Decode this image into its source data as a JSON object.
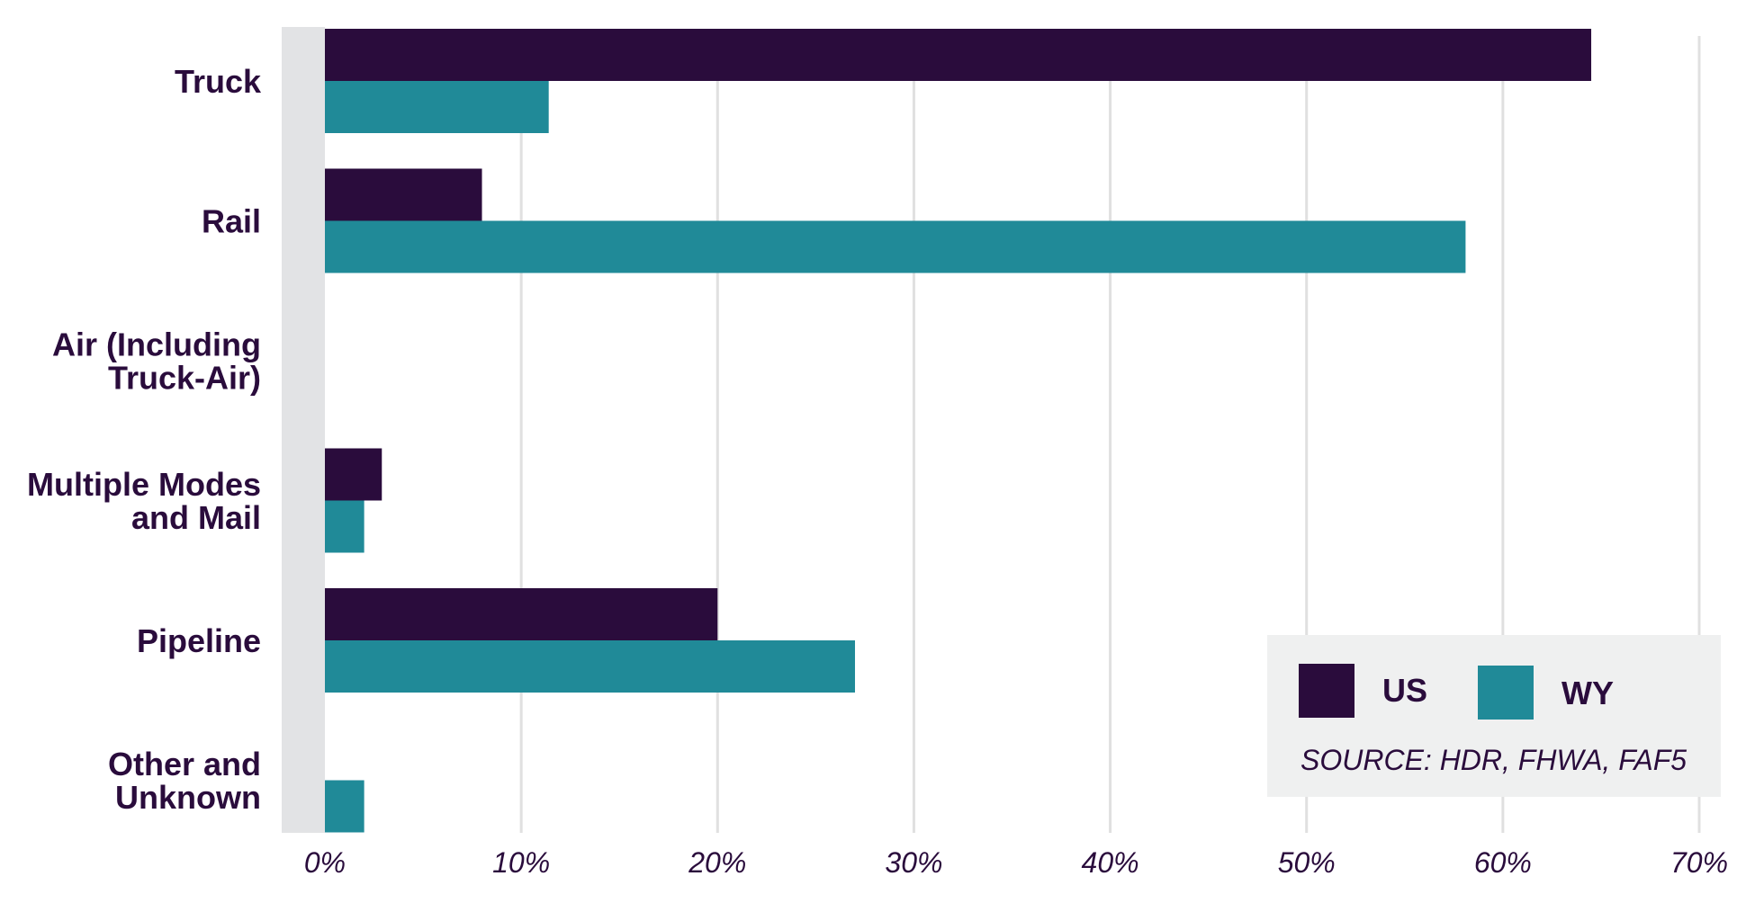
{
  "chart_data": {
    "type": "bar",
    "orientation": "horizontal",
    "categories": [
      "Truck",
      "Rail",
      "Air (Including Truck-Air)",
      "Multiple Modes and Mail",
      "Pipeline",
      "Other and Unknown"
    ],
    "category_lines": [
      [
        "Truck"
      ],
      [
        "Rail"
      ],
      [
        "Air (Including",
        "Truck-Air)"
      ],
      [
        "Multiple Modes",
        "and Mail"
      ],
      [
        "Pipeline"
      ],
      [
        "Other and",
        "Unknown"
      ]
    ],
    "series": [
      {
        "name": "US",
        "color": "#2a0c3c",
        "values": [
          64.5,
          8.0,
          0,
          2.9,
          20.0,
          0
        ]
      },
      {
        "name": "WY",
        "color": "#208a98",
        "values": [
          11.4,
          58.1,
          0,
          2.0,
          27.0,
          2.0
        ]
      }
    ],
    "xlim": [
      0,
      70
    ],
    "ticks": [
      0,
      10,
      20,
      30,
      40,
      50,
      60,
      70
    ],
    "tick_labels": [
      "0%",
      "10%",
      "20%",
      "30%",
      "40%",
      "50%",
      "60%",
      "70%"
    ],
    "grid": true,
    "legend_position": "bottom-right",
    "source": "SOURCE: HDR, FHWA, FAF5",
    "title": "",
    "xlabel": "",
    "ylabel": ""
  }
}
